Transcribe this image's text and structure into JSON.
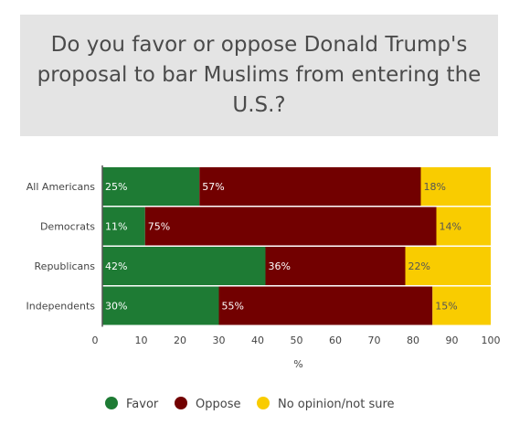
{
  "chart_data": {
    "type": "bar",
    "orientation": "horizontal",
    "stacked": true,
    "title": "Do you favor or oppose Donald Trump's proposal to bar Muslims from entering the U.S.?",
    "xlabel": "%",
    "ylabel": "",
    "xlim": [
      0,
      100
    ],
    "xticks": [
      0,
      10,
      20,
      30,
      40,
      50,
      60,
      70,
      80,
      90,
      100
    ],
    "grid": false,
    "legend_position": "bottom",
    "categories": [
      "All Americans",
      "Democrats",
      "Republicans",
      "Independents"
    ],
    "series": [
      {
        "name": "Favor",
        "color": "#1e7b34",
        "label_color": "#ffffff",
        "values": [
          25,
          11,
          42,
          30
        ]
      },
      {
        "name": "Oppose",
        "color": "#720000",
        "label_color": "#ffffff",
        "values": [
          57,
          75,
          36,
          55
        ]
      },
      {
        "name": "No opinion/not sure",
        "color": "#f9cc00",
        "label_color": "#555555",
        "values": [
          18,
          14,
          22,
          15
        ]
      }
    ]
  }
}
